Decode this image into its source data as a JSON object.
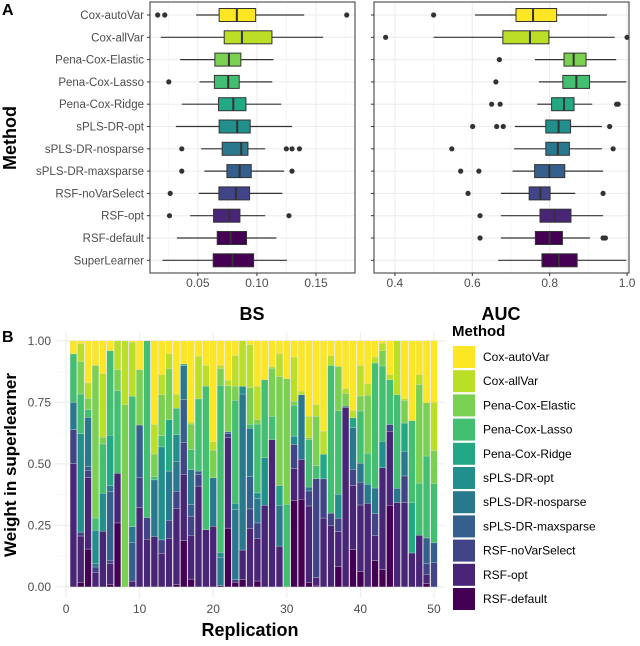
{
  "panel_labels": {
    "a": "A",
    "b": "B"
  },
  "chart_data": [
    {
      "type": "boxplot",
      "panel": "A",
      "orientation": "horizontal",
      "ylabel": "Method",
      "xlabel": "BS",
      "xlim": [
        0.0095,
        0.183
      ],
      "xticks": [
        "0.05",
        "0.10",
        "0.15"
      ],
      "grid": true,
      "categories": [
        "Cox-autoVar",
        "Cox-allVar",
        "Pena-Cox-Elastic",
        "Pena-Cox-Lasso",
        "Pena-Cox-Ridge",
        "sPLS-DR-opt",
        "sPLS-DR-nosparse",
        "sPLS-DR-maxsparse",
        "RSF-noVarSelect",
        "RSF-opt",
        "RSF-default",
        "SuperLearner"
      ],
      "boxes": [
        {
          "min": 0.0486,
          "q1": 0.068,
          "median": 0.083,
          "q3": 0.0989,
          "max": 0.14,
          "outliers": [
            0.016,
            0.022,
            0.176
          ]
        },
        {
          "min": 0.0186,
          "q1": 0.0723,
          "median": 0.0873,
          "q3": 0.1127,
          "max": 0.156,
          "outliers": []
        },
        {
          "min": 0.035,
          "q1": 0.0644,
          "median": 0.0763,
          "q3": 0.0864,
          "max": 0.114,
          "outliers": []
        },
        {
          "min": 0.0514,
          "q1": 0.064,
          "median": 0.0757,
          "q3": 0.085,
          "max": 0.113,
          "outliers": [
            0.0254
          ]
        },
        {
          "min": 0.0364,
          "q1": 0.0675,
          "median": 0.08,
          "q3": 0.0907,
          "max": 0.1206,
          "outliers": []
        },
        {
          "min": 0.0314,
          "q1": 0.068,
          "median": 0.0833,
          "q3": 0.0943,
          "max": 0.1297,
          "outliers": []
        },
        {
          "min": 0.0528,
          "q1": 0.0706,
          "median": 0.0867,
          "q3": 0.0924,
          "max": 0.107,
          "outliers": [
            0.0364,
            0.1249,
            0.1297,
            0.136
          ]
        },
        {
          "min": 0.0556,
          "q1": 0.0746,
          "median": 0.0853,
          "q3": 0.0952,
          "max": 0.123,
          "outliers": [
            0.0364,
            0.1297
          ]
        },
        {
          "min": 0.0508,
          "q1": 0.0678,
          "median": 0.0822,
          "q3": 0.0938,
          "max": 0.1215,
          "outliers": [
            0.0266
          ]
        },
        {
          "min": 0.0435,
          "q1": 0.0633,
          "median": 0.0766,
          "q3": 0.0856,
          "max": 0.107,
          "outliers": [
            0.026,
            0.1271
          ]
        },
        {
          "min": 0.0322,
          "q1": 0.0664,
          "median": 0.0777,
          "q3": 0.0912,
          "max": 0.1164,
          "outliers": []
        },
        {
          "min": 0.02,
          "q1": 0.063,
          "median": 0.0794,
          "q3": 0.0972,
          "max": 0.1254,
          "outliers": []
        }
      ]
    },
    {
      "type": "boxplot",
      "panel": "A",
      "orientation": "horizontal",
      "xlabel": "AUC",
      "xlim": [
        0.346,
        1.005
      ],
      "xticks": [
        "0.4",
        "0.6",
        "0.8",
        "1.0"
      ],
      "grid": true,
      "boxes": [
        {
          "min": 0.607,
          "q1": 0.713,
          "median": 0.757,
          "q3": 0.818,
          "max": 0.948,
          "outliers": [
            0.5
          ]
        },
        {
          "min": 0.5,
          "q1": 0.679,
          "median": 0.749,
          "q3": 0.798,
          "max": 0.968,
          "outliers": [
            0.376,
            1.0
          ]
        },
        {
          "min": 0.762,
          "q1": 0.837,
          "median": 0.862,
          "q3": 0.894,
          "max": 0.972,
          "outliers": [
            0.67
          ]
        },
        {
          "min": 0.772,
          "q1": 0.834,
          "median": 0.869,
          "q3": 0.903,
          "max": 0.998,
          "outliers": [
            0.661
          ]
        },
        {
          "min": 0.768,
          "q1": 0.805,
          "median": 0.837,
          "q3": 0.863,
          "max": 0.91,
          "outliers": [
            0.65,
            0.672,
            0.973,
            0.977
          ]
        },
        {
          "min": 0.71,
          "q1": 0.79,
          "median": 0.823,
          "q3": 0.854,
          "max": 0.935,
          "outliers": [
            0.601,
            0.663,
            0.68,
            0.955
          ]
        },
        {
          "min": 0.708,
          "q1": 0.79,
          "median": 0.821,
          "q3": 0.851,
          "max": 0.935,
          "outliers": [
            0.547,
            0.964
          ]
        },
        {
          "min": 0.704,
          "q1": 0.761,
          "median": 0.799,
          "q3": 0.839,
          "max": 0.938,
          "outliers": [
            0.57,
            0.617
          ]
        },
        {
          "min": 0.674,
          "q1": 0.747,
          "median": 0.776,
          "q3": 0.801,
          "max": 0.866,
          "outliers": [
            0.589,
            0.938
          ]
        },
        {
          "min": 0.674,
          "q1": 0.775,
          "median": 0.812,
          "q3": 0.855,
          "max": 0.938,
          "outliers": [
            0.62
          ]
        },
        {
          "min": 0.674,
          "q1": 0.763,
          "median": 0.8,
          "q3": 0.833,
          "max": 0.904,
          "outliers": [
            0.62,
            0.938,
            0.944
          ]
        },
        {
          "min": 0.667,
          "q1": 0.78,
          "median": 0.824,
          "q3": 0.871,
          "max": 0.998,
          "outliers": []
        }
      ]
    },
    {
      "type": "bar",
      "stacked": true,
      "panel": "B",
      "xlabel": "Replication",
      "ylabel": "Weight in superlearner",
      "xlim": [
        -1.5,
        51.5
      ],
      "ylim": [
        -0.045,
        1.036
      ],
      "xticks": [
        "0",
        "10",
        "20",
        "30",
        "40",
        "50"
      ],
      "yticks": [
        "0.00",
        "0.25",
        "0.50",
        "0.75",
        "1.00"
      ],
      "grid": true,
      "legend": {
        "title": "Method",
        "placement": "right"
      },
      "series": [
        {
          "name": "Cox-autoVar",
          "color": "#FDE725"
        },
        {
          "name": "Cox-allVar",
          "color": "#BBDF27"
        },
        {
          "name": "Pena-Cox-Elastic",
          "color": "#7AD151"
        },
        {
          "name": "Pena-Cox-Lasso",
          "color": "#43BF71"
        },
        {
          "name": "Pena-Cox-Ridge",
          "color": "#22A884"
        },
        {
          "name": "sPLS-DR-opt",
          "color": "#21908C"
        },
        {
          "name": "sPLS-DR-nosparse",
          "color": "#2A788E"
        },
        {
          "name": "sPLS-DR-maxsparse",
          "color": "#35608D"
        },
        {
          "name": "RSF-noVarSelect",
          "color": "#414487"
        },
        {
          "name": "RSF-opt",
          "color": "#482576"
        },
        {
          "name": "RSF-default",
          "color": "#440154"
        }
      ],
      "x": [
        1,
        2,
        3,
        4,
        5,
        6,
        7,
        8,
        9,
        10,
        11,
        12,
        13,
        14,
        15,
        16,
        17,
        18,
        19,
        20,
        21,
        22,
        23,
        24,
        25,
        26,
        27,
        28,
        29,
        30,
        31,
        32,
        33,
        34,
        35,
        36,
        37,
        38,
        39,
        40,
        41,
        42,
        43,
        44,
        45,
        46,
        47,
        48,
        49,
        50
      ],
      "weights": [
        [
          0.053,
          0,
          0,
          0.197,
          0,
          0,
          0.111,
          0,
          0.138,
          0.501,
          0
        ],
        [
          0.012,
          0.072,
          0.132,
          0.161,
          0,
          0.4,
          0,
          0,
          0.016,
          0.188,
          0.019
        ],
        [
          0.171,
          0.063,
          0.045,
          0.032,
          0,
          0,
          0.2,
          0.015,
          0.03,
          0.29,
          0.154
        ],
        [
          0.1,
          0,
          0.62,
          0.05,
          0,
          0.135,
          0.014,
          0,
          0.022,
          0.059,
          0
        ],
        [
          0.134,
          0.258,
          0.027,
          0.2,
          0,
          0.155,
          0,
          0,
          0,
          0.226,
          0
        ],
        [
          0.04,
          0,
          0,
          0.344,
          0.205,
          0,
          0.023,
          0.28,
          0.014,
          0.084,
          0.01
        ],
        [
          0,
          0.117,
          0.085,
          0.336,
          0,
          0,
          0,
          0,
          0,
          0.202,
          0.26
        ],
        [
          0,
          0.26,
          0.74,
          0,
          0,
          0,
          0,
          0,
          0,
          0,
          0
        ],
        [
          0.005,
          0.22,
          0,
          0.53,
          0,
          0,
          0.064,
          0.158,
          0,
          0.023,
          0
        ],
        [
          0.117,
          0,
          0.225,
          0,
          0,
          0,
          0,
          0.213,
          0.122,
          0.323,
          0
        ],
        [
          0,
          0,
          0,
          0.718,
          0,
          0,
          0,
          0,
          0.088,
          0.194,
          0
        ],
        [
          0.34,
          0.12,
          0.092,
          0.013,
          0,
          0,
          0.23,
          0,
          0,
          0.205,
          0
        ],
        [
          0.138,
          0.081,
          0.166,
          0.046,
          0,
          0.378,
          0,
          0,
          0.054,
          0.137,
          0
        ],
        [
          0.053,
          0.061,
          0.206,
          0,
          0.209,
          0,
          0.2,
          0,
          0.073,
          0.198,
          0
        ],
        [
          0.216,
          0.057,
          0,
          0.108,
          0,
          0.108,
          0.121,
          0,
          0.07,
          0.31,
          0.009
        ],
        [
          0.094,
          0,
          0,
          0,
          0.007,
          0,
          0.138,
          0.175,
          0.128,
          0.27,
          0.188
        ],
        [
          0.33,
          0.008,
          0.104,
          0.081,
          0,
          0,
          0.142,
          0.047,
          0.078,
          0.178,
          0.032
        ],
        [
          0.063,
          0.173,
          0,
          0.293,
          0,
          0,
          0,
          0.014,
          0.047,
          0.41,
          0
        ],
        [
          0.1,
          0.084,
          0,
          0.584,
          0,
          0,
          0,
          0,
          0,
          0.232,
          0
        ],
        [
          0.41,
          0.034,
          0.112,
          0,
          0,
          0,
          0.197,
          0,
          0,
          0.247,
          0
        ],
        [
          0.1,
          0.013,
          0.067,
          0.68,
          0,
          0.02,
          0.115,
          0,
          0,
          0,
          0.005
        ],
        [
          0.16,
          0.022,
          0.188,
          0,
          0,
          0,
          0,
          0.007,
          0.017,
          0.367,
          0.239
        ],
        [
          0.06,
          0.124,
          0.058,
          0.418,
          0,
          0.026,
          0.285,
          0,
          0.01,
          0,
          0.019
        ],
        [
          0,
          0.185,
          0,
          0,
          0,
          0.031,
          0.634,
          0,
          0,
          0.12,
          0.03
        ],
        [
          0.016,
          0.175,
          0.148,
          0.016,
          0,
          0,
          0.197,
          0.131,
          0.081,
          0.236,
          0
        ],
        [
          0.185,
          0.135,
          0.018,
          0.28,
          0,
          0.023,
          0.099,
          0,
          0.063,
          0.173,
          0.024
        ],
        [
          0.158,
          0,
          0,
          0.317,
          0,
          0.193,
          0,
          0,
          0,
          0.332,
          0
        ],
        [
          0.104,
          0.007,
          0.196,
          0.094,
          0,
          0,
          0,
          0,
          0,
          0.599,
          0
        ],
        [
          0.053,
          0.092,
          0.443,
          0,
          0.08,
          0,
          0.166,
          0,
          0,
          0.166,
          0
        ],
        [
          0.154,
          0,
          0.51,
          0.336,
          0,
          0,
          0,
          0,
          0,
          0,
          0
        ],
        [
          0.066,
          0.18,
          0.016,
          0.125,
          0,
          0.034,
          0,
          0,
          0.098,
          0.131,
          0.35
        ],
        [
          0.205,
          0.014,
          0,
          0,
          0,
          0,
          0.263,
          0,
          0,
          0.162,
          0.356
        ],
        [
          0.306,
          0.088,
          0.007,
          0.193,
          0,
          0,
          0.016,
          0,
          0.061,
          0.31,
          0.019
        ],
        [
          0.26,
          0.047,
          0.2,
          0.053,
          0,
          0,
          0,
          0,
          0.402,
          0.034,
          0.004
        ],
        [
          0.367,
          0.094,
          0,
          0,
          0.1,
          0,
          0,
          0,
          0.159,
          0.28,
          0
        ],
        [
          0.06,
          0.04,
          0,
          0.6,
          0,
          0,
          0,
          0,
          0.05,
          0.25,
          0
        ],
        [
          0.104,
          0,
          0.18,
          0.34,
          0,
          0.097,
          0,
          0,
          0.054,
          0.143,
          0.082
        ],
        [
          0.194,
          0.02,
          0.051,
          0,
          0,
          0,
          0,
          0.007,
          0,
          0.728,
          0
        ],
        [
          0.283,
          0.03,
          0,
          0,
          0.04,
          0,
          0.169,
          0,
          0.066,
          0.261,
          0.151
        ],
        [
          0.1,
          0.124,
          0.061,
          0.212,
          0,
          0,
          0.078,
          0,
          0.092,
          0.271,
          0.062
        ],
        [
          0.175,
          0.046,
          0.236,
          0.126,
          0,
          0,
          0.077,
          0,
          0,
          0.34,
          0
        ],
        [
          0.066,
          0.024,
          0,
          0.508,
          0,
          0,
          0.105,
          0,
          0.088,
          0.102,
          0.107
        ],
        [
          0.01,
          0.03,
          0.062,
          0.306,
          0,
          0.108,
          0,
          0,
          0,
          0.414,
          0.07
        ],
        [
          0.138,
          0.02,
          0,
          0.182,
          0,
          0,
          0,
          0,
          0.027,
          0.301,
          0.332
        ],
        [
          0,
          0.219,
          0,
          0.38,
          0,
          0,
          0.058,
          0,
          0,
          0.343,
          0
        ],
        [
          0.235,
          0.007,
          0.092,
          0,
          0.115,
          0,
          0.1,
          0,
          0.108,
          0.343,
          0
        ],
        [
          0.324,
          0,
          0,
          0.333,
          0.205,
          0,
          0,
          0,
          0,
          0.138,
          0
        ],
        [
          0.138,
          0.04,
          0.4,
          0.212,
          0,
          0,
          0,
          0,
          0,
          0.21,
          0
        ],
        [
          0.252,
          0,
          0.216,
          0.333,
          0,
          0,
          0,
          0.105,
          0.043,
          0.038,
          0.013
        ],
        [
          0.25,
          0.196,
          0.135,
          0.24,
          0,
          0,
          0,
          0.081,
          0.098,
          0,
          0
        ]
      ]
    }
  ]
}
